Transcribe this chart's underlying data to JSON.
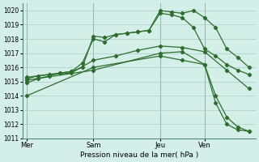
{
  "bg_color": "#d4eee8",
  "grid_color": "#aacccc",
  "line_color": "#2d6e2d",
  "xlabel": "Pression niveau de la mer( hPa )",
  "ylim": [
    1011,
    1020.5
  ],
  "yticks": [
    1011,
    1012,
    1013,
    1014,
    1015,
    1016,
    1017,
    1018,
    1019,
    1020
  ],
  "xtick_labels": [
    "Mer",
    "Sam",
    "Jeu",
    "Ven"
  ],
  "xtick_positions": [
    0,
    3,
    6,
    8
  ],
  "xlim": [
    -0.2,
    10.3
  ],
  "series": [
    {
      "x": [
        0,
        0.5,
        1,
        1.5,
        2,
        2.5,
        3,
        3.5,
        4,
        4.5,
        5,
        5.5,
        6,
        6.5,
        7,
        7.5,
        8,
        8.5,
        9,
        9.5,
        10
      ],
      "y": [
        1014.9,
        1015.2,
        1015.4,
        1015.6,
        1015.7,
        1016.3,
        1018.0,
        1017.8,
        1018.3,
        1018.4,
        1018.5,
        1018.6,
        1020.0,
        1019.9,
        1019.8,
        1020.0,
        1019.5,
        1018.8,
        1017.3,
        1016.7,
        1016.0
      ]
    },
    {
      "x": [
        0,
        0.5,
        1,
        1.5,
        2,
        2.5,
        3,
        3.5,
        4,
        4.5,
        5,
        5.5,
        6,
        6.5,
        7,
        7.5,
        8,
        8.5,
        9,
        9.5,
        10
      ],
      "y": [
        1015.2,
        1015.4,
        1015.5,
        1015.6,
        1015.7,
        1016.0,
        1018.2,
        1018.1,
        1018.3,
        1018.4,
        1018.5,
        1018.6,
        1019.8,
        1019.7,
        1019.5,
        1018.8,
        1017.3,
        1016.8,
        1016.2,
        1015.8,
        1015.5
      ]
    },
    {
      "x": [
        0,
        1,
        2,
        3,
        4,
        5,
        6,
        7,
        8,
        9,
        10
      ],
      "y": [
        1015.3,
        1015.5,
        1015.6,
        1016.5,
        1016.8,
        1017.2,
        1017.5,
        1017.4,
        1017.1,
        1015.8,
        1014.5
      ]
    },
    {
      "x": [
        0,
        3,
        6,
        7,
        8,
        8.5,
        9,
        9.5,
        10
      ],
      "y": [
        1014.0,
        1016.0,
        1016.8,
        1016.5,
        1016.2,
        1014.0,
        1012.5,
        1011.8,
        1011.5
      ]
    },
    {
      "x": [
        0,
        3,
        6,
        7,
        8,
        8.5,
        9,
        9.5,
        10
      ],
      "y": [
        1015.1,
        1015.8,
        1017.0,
        1017.1,
        1016.2,
        1013.5,
        1012.0,
        1011.6,
        1011.5
      ]
    }
  ]
}
